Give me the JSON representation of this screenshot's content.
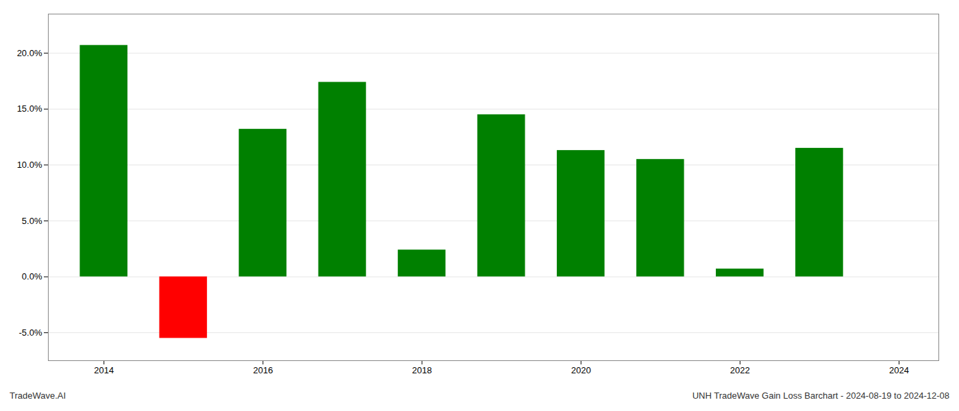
{
  "chart_data": {
    "type": "bar",
    "x": [
      2014,
      2015,
      2016,
      2017,
      2018,
      2019,
      2020,
      2021,
      2022,
      2023
    ],
    "values": [
      0.207,
      -0.055,
      0.132,
      0.174,
      0.024,
      0.145,
      0.113,
      0.105,
      0.007,
      0.115
    ],
    "colors": [
      "#008000",
      "#ff0000",
      "#008000",
      "#008000",
      "#008000",
      "#008000",
      "#008000",
      "#008000",
      "#008000",
      "#008000"
    ],
    "xlim": [
      2013.3,
      2024.5
    ],
    "xticks": [
      2014,
      2016,
      2018,
      2020,
      2022,
      2024
    ],
    "ylim": [
      -0.075,
      0.235
    ],
    "yticks": [
      {
        "value": -0.05,
        "label": "-5.0%"
      },
      {
        "value": 0.0,
        "label": "0.0%"
      },
      {
        "value": 0.05,
        "label": "5.0%"
      },
      {
        "value": 0.1,
        "label": "10.0%"
      },
      {
        "value": 0.15,
        "label": "15.0%"
      },
      {
        "value": 0.2,
        "label": "20.0%"
      }
    ],
    "grid": true,
    "annotations": [
      "TradeWave.AI",
      "UNH TradeWave Gain Loss Barchart - 2024-08-19 to 2024-12-08"
    ]
  }
}
